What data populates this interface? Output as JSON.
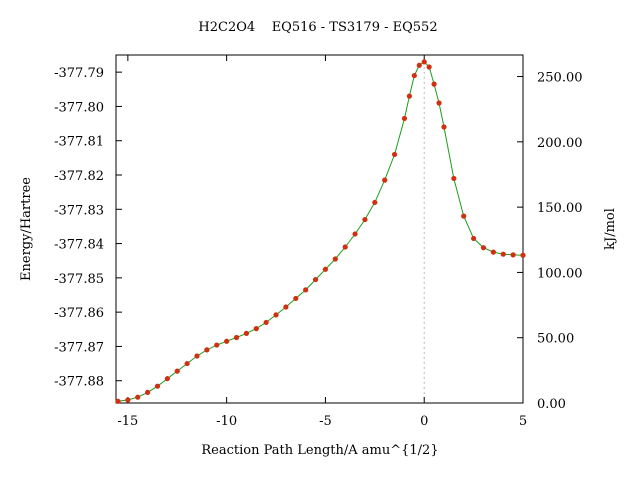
{
  "chart_data": {
    "type": "line",
    "title": "H2C2O4    EQ516 - TS3179 - EQ552",
    "xlabel": "Reaction Path Length/A amu^{1/2}",
    "ylabel": "Energy/Hartree",
    "y2label": "kJ/mol",
    "xlim": [
      -15.6,
      5.0
    ],
    "ylim": [
      -377.8865,
      -377.785
    ],
    "y2lim": [
      0.0,
      266.5
    ],
    "x_ticks": [
      "-15",
      "-10",
      "-5",
      "0",
      "5"
    ],
    "x_tick_values": [
      -15,
      -10,
      -5,
      0,
      5
    ],
    "y_ticks": [
      "-377.79",
      "-377.80",
      "-377.81",
      "-377.82",
      "-377.83",
      "-377.84",
      "-377.85",
      "-377.86",
      "-377.87",
      "-377.88"
    ],
    "y_tick_values": [
      -377.79,
      -377.8,
      -377.81,
      -377.82,
      -377.83,
      -377.84,
      -377.85,
      -377.86,
      -377.87,
      -377.88
    ],
    "y2_ticks": [
      "0.00",
      "50.00",
      "100.00",
      "150.00",
      "200.00",
      "250.00"
    ],
    "y2_tick_values": [
      0,
      50,
      100,
      150,
      200,
      250
    ],
    "ts_marker_x": 0,
    "line_color": "#1a9e1a",
    "point_color": "#d03010",
    "marker_color": "#b8b8b8",
    "grid": false,
    "series": [
      {
        "x": [
          -15.5,
          -15.0,
          -14.5,
          -14.0,
          -13.5,
          -13.0,
          -12.5,
          -12.0,
          -11.5,
          -11.0,
          -10.5,
          -10.0,
          -9.5,
          -9.0,
          -8.5,
          -8.0,
          -7.5,
          -7.0,
          -6.5,
          -6.0,
          -5.5,
          -5.0,
          -4.5,
          -4.0,
          -3.5,
          -3.0,
          -2.5,
          -2.0,
          -1.5,
          -1.0,
          -0.75,
          -0.5,
          -0.25,
          0.0,
          0.25,
          0.5,
          0.75,
          1.0,
          1.5,
          2.0,
          2.5,
          3.0,
          3.5,
          4.0,
          4.5,
          5.0
        ],
        "y": [
          -377.886,
          -377.8856,
          -377.8848,
          -377.8834,
          -377.8816,
          -377.8794,
          -377.8772,
          -377.875,
          -377.8728,
          -377.871,
          -377.8696,
          -377.8685,
          -377.8674,
          -377.8662,
          -377.8648,
          -377.863,
          -377.8608,
          -377.8585,
          -377.856,
          -377.8535,
          -377.8505,
          -377.8475,
          -377.8445,
          -377.841,
          -377.8372,
          -377.833,
          -377.828,
          -377.8215,
          -377.814,
          -377.8035,
          -377.797,
          -377.791,
          -377.788,
          -377.787,
          -377.7885,
          -377.7935,
          -377.799,
          -377.806,
          -377.821,
          -377.832,
          -377.8385,
          -377.8412,
          -377.8425,
          -377.8431,
          -377.8433,
          -377.8434
        ]
      }
    ]
  }
}
